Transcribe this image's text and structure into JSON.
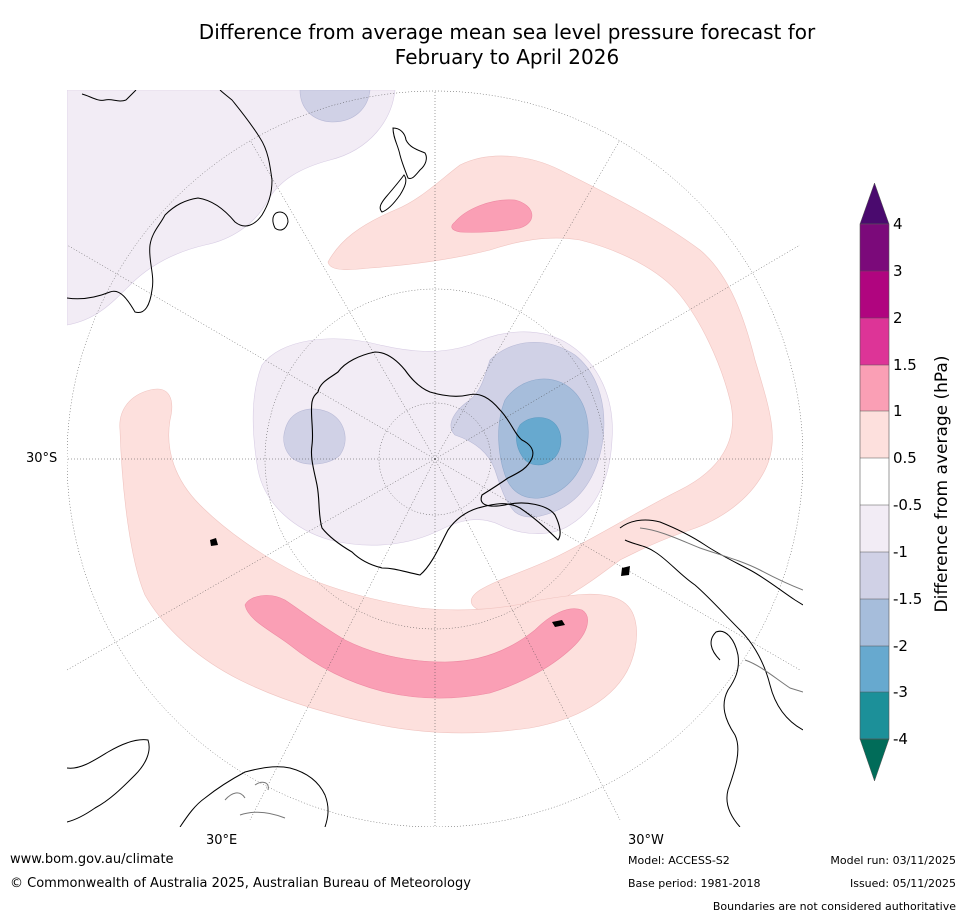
{
  "title": {
    "line1": "Difference from average mean sea level pressure forecast for",
    "line2": "February to April 2026"
  },
  "map": {
    "projection": "south-polar-stereographic",
    "lat_label": "30°S",
    "lon_labels": {
      "east": "30°E",
      "west": "30°W"
    },
    "features": [
      {
        "name": "Antarctica"
      },
      {
        "name": "Australia"
      },
      {
        "name": "New Zealand"
      },
      {
        "name": "South America"
      },
      {
        "name": "Africa"
      }
    ]
  },
  "colorbar": {
    "label": "Difference from average (hPa)",
    "ticks": [
      "4",
      "3",
      "2",
      "1.5",
      "1",
      "0.5",
      "-0.5",
      "-1",
      "-1.5",
      "-2",
      "-3",
      "-4"
    ],
    "colors": {
      "above_4": "#4a0a6e",
      "3_to_4": "#7b0a7a",
      "2_to_3": "#b0057f",
      "1_5_to_2": "#dd3497",
      "1_to_1_5": "#fa9fb5",
      "0_5_to_1": "#fde0dd",
      "neutral": "#ffffff",
      "m1_to_m0_5": "#f2ecf5",
      "m1_5_to_m1": "#d0d1e6",
      "m2_to_m1_5": "#a6bddb",
      "m3_to_m2": "#67a9cf",
      "m4_to_m3": "#1c9099",
      "below_m4": "#016c59"
    }
  },
  "footer": {
    "website": "www.bom.gov.au/climate",
    "copyright": "© Commonwealth of Australia 2025, Australian Bureau of Meteorology",
    "model": "Model: ACCESS-S2",
    "base_period": "Base period: 1981-2018",
    "model_run": "Model run: 03/11/2025",
    "issued": "Issued: 05/11/2025",
    "disclaimer": "Boundaries are not considered authoritative"
  }
}
